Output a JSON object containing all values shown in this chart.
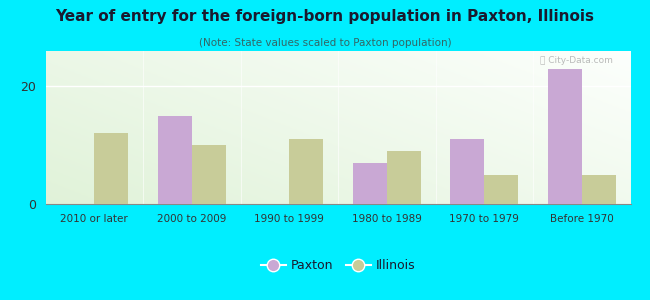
{
  "title": "Year of entry for the foreign-born population in Paxton, Illinois",
  "subtitle": "(Note: State values scaled to Paxton population)",
  "categories": [
    "2010 or later",
    "2000 to 2009",
    "1990 to 1999",
    "1980 to 1989",
    "1970 to 1979",
    "Before 1970"
  ],
  "paxton_values": [
    0,
    15,
    0,
    7,
    11,
    23
  ],
  "illinois_values": [
    12,
    10,
    11,
    9,
    5,
    5
  ],
  "paxton_color": "#c9a8d4",
  "illinois_color": "#c8cc99",
  "background_outer": "#00eeff",
  "ylim": [
    0,
    26
  ],
  "yticks": [
    0,
    20
  ],
  "bar_width": 0.35,
  "legend_paxton": "Paxton",
  "legend_illinois": "Illinois",
  "title_color": "#1a1a2e",
  "subtitle_color": "#336666"
}
